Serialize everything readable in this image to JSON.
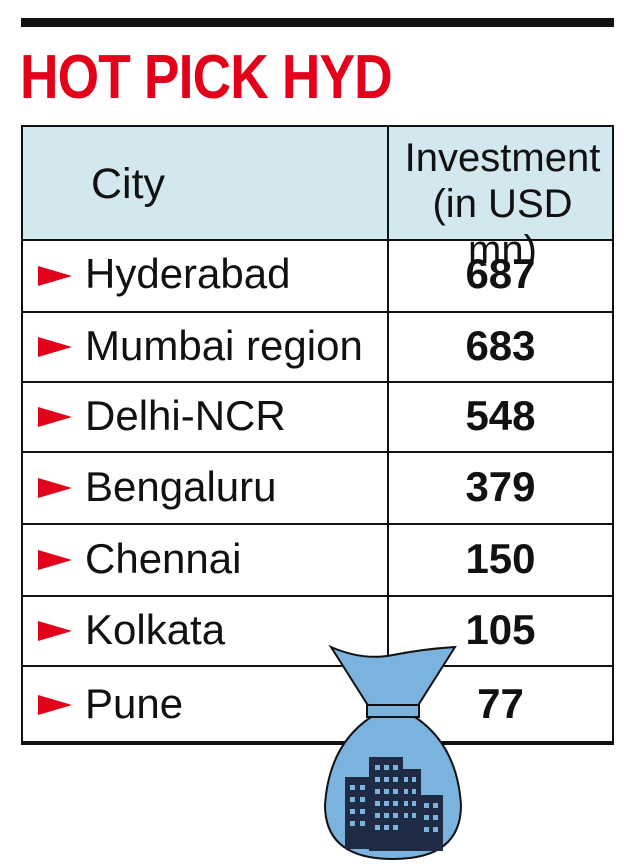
{
  "title": "HOT PICK HYD",
  "chart_data": {
    "type": "table",
    "columns": [
      "City",
      "Investment (in USD mn)"
    ],
    "rows": [
      {
        "city": "Hyderabad",
        "value": 687
      },
      {
        "city": "Mumbai region",
        "value": 683
      },
      {
        "city": "Delhi-NCR",
        "value": 548
      },
      {
        "city": "Bengaluru",
        "value": 379
      },
      {
        "city": "Chennai",
        "value": 150
      },
      {
        "city": "Kolkata",
        "value": 105
      },
      {
        "city": "Pune",
        "value": 77
      }
    ]
  },
  "header": {
    "city": "City",
    "investment_line1": "Investment",
    "investment_line2": "(in USD mn)"
  },
  "colors": {
    "accent": "#e3001b",
    "header_bg": "#d3e7ef",
    "bag": "#7ab3dd",
    "building": "#1f2a44",
    "ink": "#111111"
  },
  "icons": {
    "row_marker": "red-arrow-icon",
    "illustration": "money-bag-with-buildings-icon"
  }
}
